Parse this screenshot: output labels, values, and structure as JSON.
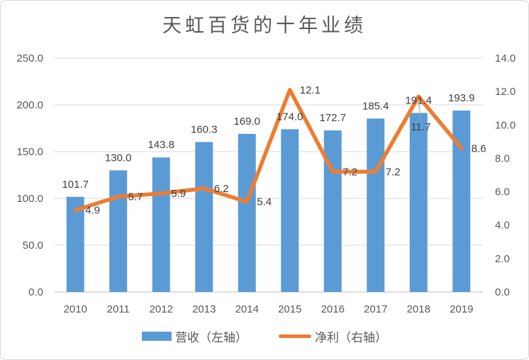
{
  "chart_data": {
    "type": "bar+line combo",
    "title": "天虹百货的十年业绩",
    "categories": [
      "2010",
      "2011",
      "2012",
      "2013",
      "2014",
      "2015",
      "2016",
      "2017",
      "2018",
      "2019"
    ],
    "series": [
      {
        "name": "营收（左轴）",
        "type": "bar",
        "axis": "left",
        "values": [
          101.7,
          130.0,
          143.8,
          160.3,
          169.0,
          174.0,
          172.7,
          185.4,
          191.4,
          193.9
        ]
      },
      {
        "name": "净利（右轴）",
        "type": "line",
        "axis": "right",
        "values": [
          4.9,
          5.7,
          5.9,
          6.2,
          5.4,
          12.1,
          7.2,
          7.2,
          11.7,
          8.6
        ]
      }
    ],
    "left_axis": {
      "min": 0,
      "max": 250,
      "step": 50,
      "tick_labels": [
        "0.0",
        "50.0",
        "100.0",
        "150.0",
        "200.0",
        "250.0"
      ]
    },
    "right_axis": {
      "min": 0,
      "max": 14,
      "step": 2,
      "tick_labels": [
        "0.0",
        "2.0",
        "4.0",
        "6.0",
        "8.0",
        "10.0",
        "12.0",
        "14.0"
      ]
    },
    "grid": true,
    "legend_position": "bottom",
    "data_labels": true,
    "moved_label": {
      "series": 1,
      "index": 8,
      "dx": 3,
      "dy": 48,
      "leader_line": true
    },
    "colors": {
      "bar": "#5B9BD5",
      "line": "#ED7D31",
      "grid": "#D9D9D9",
      "axis_line": "#BFBFBF",
      "tick_text": "#595959",
      "data_label": "#404040",
      "leader": "#A6A6A6",
      "border": "#D9D9D9"
    }
  }
}
